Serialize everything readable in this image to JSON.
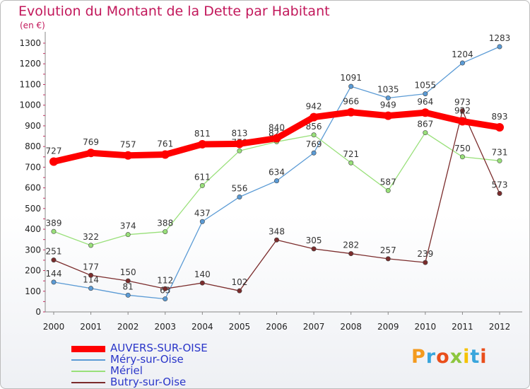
{
  "header": {
    "title": "Evolution du Montant de la Dette par Habitant",
    "subtitle": "(en €)"
  },
  "logo": {
    "text": "Proxiti",
    "letters": [
      {
        "ch": "P",
        "color": "#f39a1e"
      },
      {
        "ch": "r",
        "color": "#39a5dc"
      },
      {
        "ch": "o",
        "color": "#e94e1b"
      },
      {
        "ch": "x",
        "color": "#8cc63e"
      },
      {
        "ch": "i",
        "color": "#f6c200"
      },
      {
        "ch": "t",
        "color": "#39a5dc"
      },
      {
        "ch": "i",
        "color": "#e94e1b"
      }
    ]
  },
  "chart_data": {
    "type": "line",
    "title": "Evolution du Montant de la Dette par Habitant",
    "subtitle": "(en €)",
    "x": [
      "2000",
      "2001",
      "2002",
      "2003",
      "2004",
      "2005",
      "2006",
      "2007",
      "2008",
      "2009",
      "2010",
      "2011",
      "2012"
    ],
    "ylim": [
      0,
      1300
    ],
    "yticks": [
      0,
      100,
      200,
      300,
      400,
      500,
      600,
      700,
      800,
      900,
      1000,
      1100,
      1200,
      1300
    ],
    "grid": false,
    "legend_position": "bottom-left",
    "series": [
      {
        "name": "AUVERS-SUR-OISE",
        "color": "#ff0000",
        "values": [
          727,
          769,
          757,
          761,
          811,
          813,
          840,
          942,
          966,
          949,
          964,
          922,
          893
        ]
      },
      {
        "name": "Méry-sur-Oise",
        "color": "#5b9bd5",
        "values": [
          144,
          114,
          81,
          63,
          437,
          556,
          634,
          769,
          1091,
          1035,
          1055,
          1204,
          1283
        ]
      },
      {
        "name": "Mériel",
        "color": "#99e07a",
        "values": [
          389,
          322,
          374,
          388,
          611,
          779,
          823,
          856,
          721,
          587,
          867,
          750,
          731
        ]
      },
      {
        "name": "Butry-sur-Oise",
        "color": "#7b2c2c",
        "values": [
          251,
          177,
          150,
          112,
          140,
          102,
          348,
          305,
          282,
          257,
          239,
          973,
          573
        ]
      }
    ]
  }
}
